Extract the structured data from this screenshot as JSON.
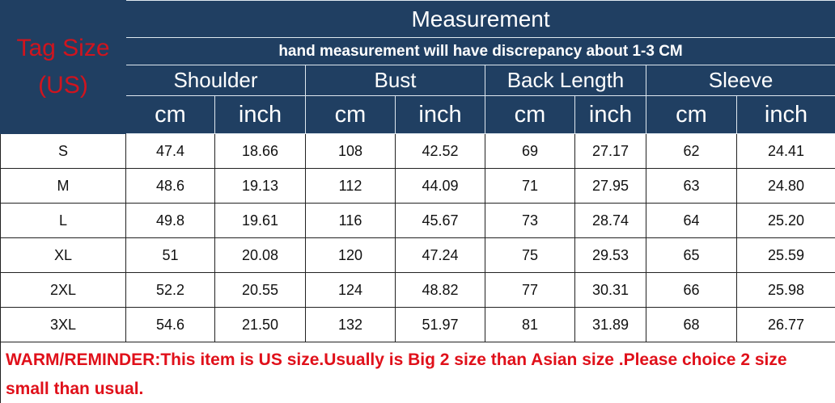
{
  "header": {
    "tag_size": "Tag Size (US)",
    "title": "Measurement",
    "subtitle": "hand measurement will have discrepancy about 1-3 CM",
    "groups": [
      "Shoulder",
      "Bust",
      "Back Length",
      "Sleeve"
    ],
    "units": [
      "cm",
      "inch",
      "cm",
      "inch",
      "cm",
      "inch",
      "cm",
      "inch"
    ]
  },
  "rows": [
    {
      "size": "S",
      "values": [
        "47.4",
        "18.66",
        "108",
        "42.52",
        "69",
        "27.17",
        "62",
        "24.41"
      ]
    },
    {
      "size": "M",
      "values": [
        "48.6",
        "19.13",
        "112",
        "44.09",
        "71",
        "27.95",
        "63",
        "24.80"
      ]
    },
    {
      "size": "L",
      "values": [
        "49.8",
        "19.61",
        "116",
        "45.67",
        "73",
        "28.74",
        "64",
        "25.20"
      ]
    },
    {
      "size": "XL",
      "values": [
        "51",
        "20.08",
        "120",
        "47.24",
        "75",
        "29.53",
        "65",
        "25.59"
      ]
    },
    {
      "size": "2XL",
      "values": [
        "52.2",
        "20.55",
        "124",
        "48.82",
        "77",
        "30.31",
        "66",
        "25.98"
      ]
    },
    {
      "size": "3XL",
      "values": [
        "54.6",
        "21.50",
        "132",
        "51.97",
        "81",
        "31.89",
        "68",
        "26.77"
      ]
    }
  ],
  "reminder": "WARM/REMINDER:This item is US size.Usually is Big 2 size than Asian size .Please choice 2 size small than usual.",
  "colors": {
    "header_bg": "#203f62",
    "tag_text": "#d0141e",
    "reminder_text": "#e0101a"
  }
}
